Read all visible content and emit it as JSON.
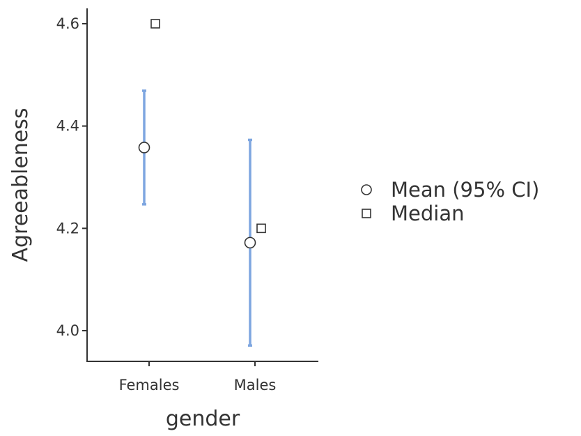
{
  "chart_data": {
    "type": "scatter",
    "xlabel": "gender",
    "ylabel": "Agreeableness",
    "categories": [
      "Females",
      "Males"
    ],
    "ylim": [
      3.94,
      4.63
    ],
    "yticks": [
      4.0,
      4.2,
      4.4,
      4.6
    ],
    "ytick_labels": [
      "4.0",
      "4.2",
      "4.4",
      "4.6"
    ],
    "series": [
      {
        "name": "Mean (95% CI)",
        "marker": "circle",
        "values": [
          4.358,
          4.172
        ],
        "ci_lower": [
          4.247,
          3.971
        ],
        "ci_upper": [
          4.469,
          4.373
        ]
      },
      {
        "name": "Median",
        "marker": "square",
        "values": [
          4.6,
          4.2
        ]
      }
    ],
    "legend_position": "right",
    "grid": false,
    "colors": {
      "error_bar": "#7ea6e0",
      "marker_edge": "#333333",
      "marker_fill": "#ffffff",
      "axis": "#333333"
    }
  }
}
